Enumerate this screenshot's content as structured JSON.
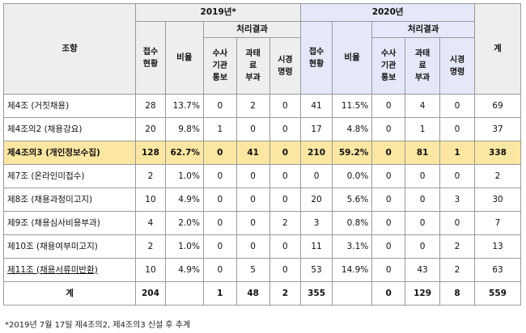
{
  "header": {
    "article": "조항",
    "year2019": "2019년*",
    "year2020": "2020년",
    "reports_l1": "접수",
    "reports_l2": "현황",
    "ratio": "비율",
    "result": "처리결과",
    "inv_l1": "수사",
    "inv_l2": "기관",
    "inv_l3": "통보",
    "fine_l1": "과태",
    "fine_l2": "료",
    "fine_l3": "부과",
    "order_l1": "시경",
    "order_l2": "명령",
    "total": "계"
  },
  "rows": [
    {
      "label": "제4조 (거짓채용)",
      "r19": "28",
      "p19": "13.7%",
      "i19": "0",
      "f19": "2",
      "o19": "0",
      "r20": "41",
      "p20": "11.5%",
      "i20": "0",
      "f20": "4",
      "o20": "0",
      "total": "69"
    },
    {
      "label": "제4조의2 (채용강요)",
      "r19": "20",
      "p19": "9.8%",
      "i19": "1",
      "f19": "0",
      "o19": "0",
      "r20": "17",
      "p20": "4.8%",
      "i20": "0",
      "f20": "1",
      "o20": "0",
      "total": "37"
    },
    {
      "label": "제4조의3 (개인정보수집)",
      "r19": "128",
      "p19": "62.7%",
      "i19": "0",
      "f19": "41",
      "o19": "0",
      "r20": "210",
      "p20": "59.2%",
      "i20": "0",
      "f20": "81",
      "o20": "1",
      "total": "338"
    },
    {
      "label": "제7조 (온라인미접수)",
      "r19": "2",
      "p19": "1.0%",
      "i19": "0",
      "f19": "0",
      "o19": "0",
      "r20": "0",
      "p20": "0.0%",
      "i20": "0",
      "f20": "0",
      "o20": "0",
      "total": "2"
    },
    {
      "label": "제8조 (채용과정미고지)",
      "r19": "10",
      "p19": "4.9%",
      "i19": "0",
      "f19": "0",
      "o19": "0",
      "r20": "20",
      "p20": "5.6%",
      "i20": "0",
      "f20": "0",
      "o20": "3",
      "total": "30"
    },
    {
      "label": "제9조 (채용심사비용부과)",
      "r19": "4",
      "p19": "2.0%",
      "i19": "0",
      "f19": "0",
      "o19": "2",
      "r20": "3",
      "p20": "0.8%",
      "i20": "0",
      "f20": "0",
      "o20": "0",
      "total": "7"
    },
    {
      "label": "제10조 (채용여부미고지)",
      "r19": "2",
      "p19": "1.0%",
      "i19": "0",
      "f19": "0",
      "o19": "0",
      "r20": "11",
      "p20": "3.1%",
      "i20": "0",
      "f20": "0",
      "o20": "2",
      "total": "13"
    },
    {
      "label": "제11조 (채용서류미반환)",
      "r19": "10",
      "p19": "4.9%",
      "i19": "0",
      "f19": "5",
      "o19": "0",
      "r20": "53",
      "p20": "14.9%",
      "i20": "0",
      "f20": "43",
      "o20": "2",
      "total": "63"
    }
  ],
  "totals": {
    "label": "계",
    "r19": "204",
    "p19": "",
    "i19": "1",
    "f19": "48",
    "o19": "2",
    "r20": "355",
    "p20": "",
    "i20": "0",
    "f20": "129",
    "o20": "8",
    "total": "559"
  },
  "footnote": "*2019년 7월 17일 제4조의2, 제4조의3 신설 후 추계"
}
